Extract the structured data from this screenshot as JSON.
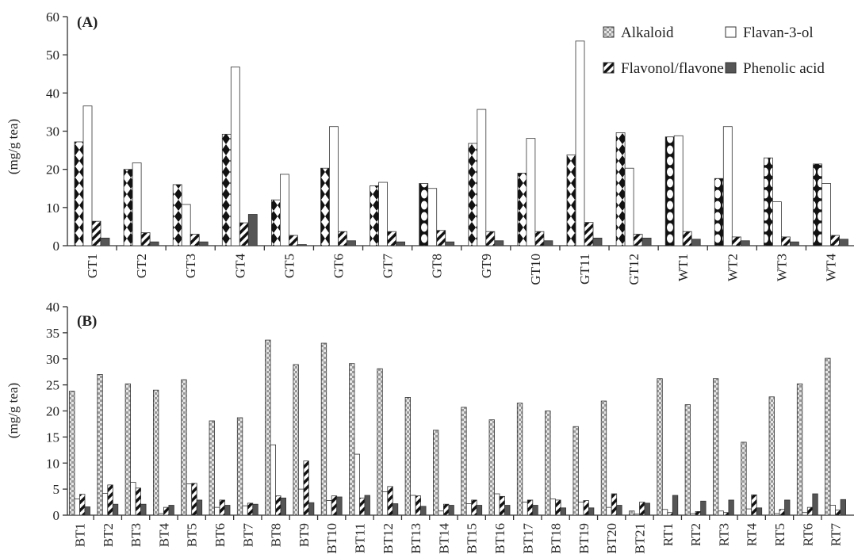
{
  "chart_data": [
    {
      "panel": "(A)",
      "type": "bar",
      "ylabel": "(mg/g tea)",
      "ylim": [
        0,
        60
      ],
      "yticks": [
        0,
        10,
        20,
        30,
        40,
        50,
        60
      ],
      "legend_placement": "top-right",
      "categories": [
        "GT1",
        "GT2",
        "GT3",
        "GT4",
        "GT5",
        "GT6",
        "GT7",
        "GT8",
        "GT9",
        "GT10",
        "GT11",
        "GT12",
        "WT1",
        "WT2",
        "WT3",
        "WT4"
      ],
      "series": [
        {
          "name": "Alkaloid",
          "values": [
            27.2,
            20.0,
            16.0,
            29.2,
            12.0,
            20.3,
            15.7,
            16.3,
            26.8,
            19.0,
            23.8,
            29.6,
            28.5,
            17.6,
            23.0,
            21.4
          ]
        },
        {
          "name": "Flavan-3-ol",
          "values": [
            36.6,
            21.7,
            10.8,
            46.8,
            18.7,
            31.2,
            16.6,
            15.0,
            35.7,
            28.1,
            53.6,
            20.3,
            28.8,
            31.2,
            11.5,
            16.3
          ]
        },
        {
          "name": "Flavonol/flavone",
          "values": [
            6.4,
            3.4,
            3.0,
            6.0,
            2.7,
            3.7,
            3.7,
            4.0,
            3.7,
            3.7,
            6.1,
            3.0,
            3.7,
            2.3,
            2.3,
            2.7
          ]
        },
        {
          "name": "Phenolic acid",
          "values": [
            2.0,
            1.0,
            1.0,
            8.2,
            0.3,
            1.3,
            1.0,
            1.0,
            1.3,
            1.3,
            2.0,
            2.0,
            1.7,
            1.3,
            1.0,
            1.7
          ]
        }
      ],
      "colors": {
        "Alkaloid": "#1a1a1a",
        "Flavan-3-ol": "#ffffff",
        "Flavonol/flavone": "#222222",
        "Phenolic acid": "#555555"
      }
    },
    {
      "panel": "(B)",
      "type": "bar",
      "ylabel": "(mg/g tea)",
      "ylim": [
        0,
        40
      ],
      "yticks": [
        0,
        5,
        10,
        15,
        20,
        25,
        30,
        35,
        40
      ],
      "categories": [
        "BT1",
        "BT2",
        "BT3",
        "BT4",
        "BT5",
        "BT6",
        "BT7",
        "BT8",
        "BT9",
        "BT10",
        "BT11",
        "BT12",
        "BT13",
        "BT14",
        "BT15",
        "BT16",
        "BT17",
        "BT18",
        "BT19",
        "BT20",
        "BT21",
        "RT1",
        "RT2",
        "RT3",
        "RT4",
        "RT5",
        "RT6",
        "RT7"
      ],
      "series": [
        {
          "name": "Alkaloid",
          "values": [
            23.8,
            27.0,
            25.2,
            24.0,
            26.0,
            18.1,
            18.7,
            33.6,
            28.9,
            33.0,
            29.1,
            28.1,
            22.6,
            16.3,
            20.7,
            18.3,
            21.5,
            20.0,
            17.0,
            21.9,
            0.8,
            26.2,
            21.2,
            26.2,
            14.0,
            22.7,
            25.2,
            30.1
          ]
        },
        {
          "name": "Flavan-3-ol",
          "values": [
            3.1,
            4.2,
            6.3,
            0.3,
            6.0,
            1.5,
            1.8,
            13.5,
            5.0,
            2.8,
            11.7,
            4.5,
            3.8,
            0.8,
            2.2,
            4.1,
            2.5,
            3.1,
            2.5,
            1.5,
            0.2,
            1.1,
            0.3,
            0.8,
            1.2,
            0.3,
            0.5,
            1.9
          ]
        },
        {
          "name": "Flavonol/flavone",
          "values": [
            4.0,
            5.8,
            5.2,
            1.5,
            6.1,
            2.9,
            2.3,
            3.7,
            10.4,
            3.7,
            3.3,
            5.5,
            3.7,
            2.1,
            2.9,
            3.6,
            2.9,
            2.9,
            2.8,
            4.1,
            2.5,
            0.5,
            0.7,
            0.5,
            3.9,
            1.1,
            1.5,
            1.0
          ]
        },
        {
          "name": "Phenolic acid",
          "values": [
            1.6,
            2.1,
            2.1,
            1.9,
            2.9,
            1.9,
            2.1,
            3.3,
            2.4,
            3.5,
            3.8,
            2.2,
            1.7,
            1.9,
            1.9,
            1.9,
            1.9,
            1.4,
            1.4,
            1.9,
            2.3,
            3.8,
            2.7,
            2.9,
            1.4,
            2.9,
            4.1,
            3.0
          ]
        }
      ],
      "colors": {
        "Alkaloid": "#cfcfcf",
        "Flavan-3-ol": "#ffffff",
        "Flavonol/flavone": "#222222",
        "Phenolic acid": "#555555"
      }
    }
  ],
  "legend": {
    "items": [
      {
        "label": "Alkaloid",
        "pattern": "alkaloid-b"
      },
      {
        "label": "Flavan-3-ol",
        "pattern": "white"
      },
      {
        "label": "Flavonol/flavone",
        "pattern": "stripe"
      },
      {
        "label": "Phenolic acid",
        "pattern": "solid"
      }
    ]
  }
}
